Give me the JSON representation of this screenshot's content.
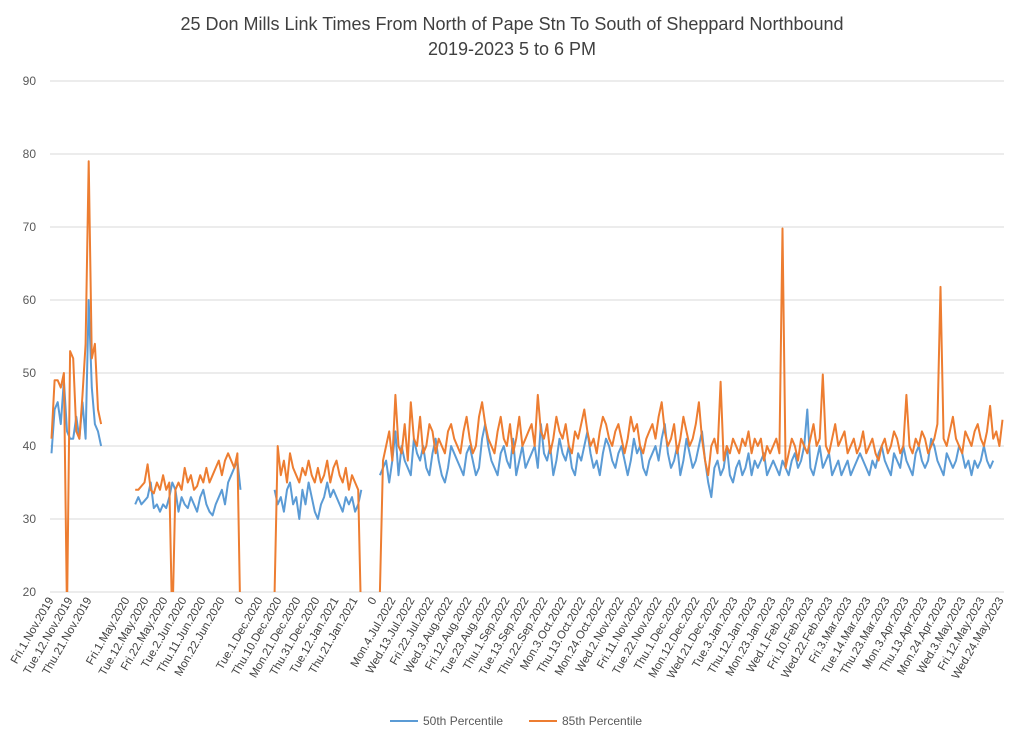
{
  "chart_data": {
    "type": "line",
    "title": "25 Don Mills Link Times From North of Pape Stn To South of Sheppard Northbound",
    "subtitle": "2019-2023 5 to 6 PM",
    "xlabel": "",
    "ylabel": "",
    "ylim": [
      20,
      90
    ],
    "yticks": [
      20,
      30,
      40,
      50,
      60,
      70,
      80,
      90
    ],
    "grid": true,
    "legend_position": "bottom",
    "colors": {
      "p50": "#5b9bd5",
      "p85": "#ed7d31",
      "grid": "#d9d9d9",
      "text": "#404040"
    },
    "x_tick_labels": [
      "Fri.1.Nov.2019",
      "Tue.12.Nov.2019",
      "Thu.21.Nov.2019",
      "",
      "Fri.1.May.2020",
      "Tue.12.May.2020",
      "Fri.22.May.2020",
      "Tue.2.Jun.2020",
      "Thu.11.Jun.2020",
      "Mon.22.Jun.2020",
      "0",
      "Tue.1.Dec.2020",
      "Thu.10.Dec.2020",
      "Mon.21.Dec.2020",
      "Thu.31.Dec.2020",
      "Tue.12.Jan.2021",
      "Thu.21.Jan.2021",
      "0",
      "Mon.4.Jul.2022",
      "Wed.13.Jul.2022",
      "Fri.22.Jul.2022",
      "Wed.3.Aug.2022",
      "Fri.12.Aug.2022",
      "Tue.23.Aug.2022",
      "Thu.1.Sep.2022",
      "Tue.13.Sep.2022",
      "Thu.22.Sep.2022",
      "Mon.3.Oct.2022",
      "Thu.13.Oct.2022",
      "Mon.24.Oct.2022",
      "Wed.2.Nov.2022",
      "Fri.11.Nov.2022",
      "Tue.22.Nov.2022",
      "Thu.1.Dec.2022",
      "Mon.12.Dec.2022",
      "Wed.21.Dec.2022",
      "Tue.3.Jan.2023",
      "Thu.12.Jan.2023",
      "Mon.23.Jan.2023",
      "Wed.1.Feb.2023",
      "Fri.10.Feb.2023",
      "Wed.22.Feb.2023",
      "Fri.3.Mar.2023",
      "Tue.14.Mar.2023",
      "Thu.23.Mar.2023",
      "Mon.3.Apr.2023",
      "Thu.13.Apr.2023",
      "Mon.24.Apr.2023",
      "Wed.3.May.2023",
      "Fri.12.May.2023",
      "Wed.24.May.2023"
    ],
    "series": [
      {
        "name": "50th Percentile",
        "segments": [
          [
            39,
            45,
            46,
            43,
            49,
            42,
            41,
            41,
            44,
            41,
            46,
            41,
            60,
            48,
            43,
            42,
            40
          ],
          [
            32,
            33,
            32,
            32.5,
            33,
            35,
            31.5,
            32,
            31,
            32,
            31.5,
            33,
            35,
            34,
            31,
            33,
            32,
            31.5,
            33,
            32,
            31,
            33,
            34,
            32,
            31,
            30.5,
            32,
            33,
            34,
            32,
            35,
            36,
            37,
            38,
            34
          ],
          [
            34,
            32,
            33,
            31,
            34,
            35,
            32,
            33,
            30,
            34,
            32,
            35,
            33,
            31,
            30,
            32,
            33,
            35,
            33,
            34,
            33,
            32,
            31,
            33,
            32,
            33,
            31,
            32,
            34
          ],
          [
            36,
            37,
            38,
            35,
            38,
            42,
            36,
            40,
            38,
            37,
            36,
            41,
            39,
            38,
            40,
            37,
            36,
            39,
            41,
            38,
            36,
            35,
            37,
            40,
            39,
            38,
            37,
            36,
            39,
            40,
            38,
            36,
            37,
            41,
            43,
            40,
            38,
            37,
            36,
            39,
            40,
            38,
            37,
            41,
            36,
            38,
            40,
            37,
            38,
            39,
            40,
            37,
            43,
            39,
            38,
            40,
            36,
            38,
            41,
            39,
            38,
            40,
            37,
            36,
            39,
            38,
            40,
            42,
            39,
            37,
            38,
            36,
            39,
            41,
            40,
            38,
            37,
            39,
            40,
            38,
            36,
            38,
            41,
            39,
            40,
            37,
            36,
            38,
            39,
            40,
            38,
            41,
            43,
            39,
            37,
            38,
            40,
            36,
            38,
            41,
            39,
            37,
            38,
            40,
            42,
            38,
            35,
            33,
            37,
            38,
            36,
            37,
            40,
            36,
            35,
            37,
            38,
            36,
            37,
            39,
            36,
            38,
            37,
            38,
            39,
            36,
            37,
            38,
            37,
            36,
            38,
            37,
            36,
            38,
            39,
            37,
            38,
            40,
            45,
            37,
            36,
            38,
            40,
            37,
            38,
            39,
            36,
            37,
            38,
            36,
            37,
            38,
            36,
            37,
            38,
            39,
            38,
            37,
            36,
            38,
            37,
            39,
            40,
            38,
            37,
            36,
            39,
            38,
            37,
            40,
            38,
            37,
            36,
            39,
            40,
            38,
            37,
            38,
            41,
            40,
            38,
            37,
            36,
            39,
            38,
            37,
            38,
            40,
            39,
            37,
            38,
            36,
            38,
            37,
            38,
            40,
            38,
            37,
            38
          ]
        ]
      },
      {
        "name": "85th Percentile",
        "segments": [
          [
            41,
            49,
            49,
            48,
            50,
            17,
            53,
            52,
            42,
            41,
            47,
            54,
            79,
            52,
            54,
            45,
            43
          ],
          [
            34,
            34,
            34.5,
            35,
            37.5,
            34,
            33.5,
            35,
            34,
            36,
            34,
            35,
            15,
            34,
            35,
            34,
            37,
            35,
            36,
            34,
            34.5,
            36,
            35,
            37,
            35,
            36,
            37,
            38,
            36,
            38,
            39,
            38,
            37,
            39,
            15
          ],
          [
            20,
            40,
            36,
            38,
            35,
            39,
            37,
            36,
            35,
            37,
            36,
            38,
            36,
            35,
            37,
            35,
            36,
            38,
            35,
            37,
            38,
            36,
            35,
            37,
            34,
            36,
            35,
            34,
            15
          ],
          [
            20,
            38,
            40,
            42,
            38,
            47,
            40,
            39,
            43,
            38,
            46,
            41,
            40,
            44,
            39,
            40,
            43,
            42,
            39,
            41,
            40,
            39,
            42,
            43,
            41,
            40,
            39,
            42,
            44,
            41,
            39,
            40,
            44,
            46,
            43,
            41,
            40,
            39,
            42,
            44,
            41,
            40,
            43,
            39,
            41,
            44,
            40,
            41,
            42,
            43,
            40,
            47,
            42,
            41,
            43,
            39,
            41,
            44,
            42,
            41,
            43,
            40,
            39,
            42,
            41,
            43,
            45,
            42,
            40,
            41,
            39,
            42,
            44,
            43,
            41,
            40,
            42,
            43,
            41,
            39,
            41,
            44,
            42,
            43,
            40,
            39,
            41,
            42,
            43,
            41,
            44,
            46,
            42,
            40,
            41,
            43,
            39,
            41,
            44,
            42,
            40,
            41,
            43,
            46,
            41,
            38,
            36,
            40,
            41,
            39,
            48.8,
            38,
            40,
            39,
            41,
            40,
            39,
            41,
            40,
            42,
            39,
            41,
            40,
            41,
            38,
            40,
            39,
            40,
            41,
            39,
            69.8,
            37,
            39,
            41,
            40,
            38,
            41,
            40,
            39,
            41,
            43,
            40,
            41,
            49.8,
            40,
            39,
            41,
            43,
            40,
            41,
            42,
            39,
            40,
            41,
            39,
            40,
            42,
            39,
            40,
            41,
            39,
            38,
            40,
            41,
            39,
            40,
            42,
            41,
            39,
            40,
            47,
            40,
            39,
            41,
            40,
            42,
            41,
            39,
            40,
            41,
            43,
            61.8,
            41,
            40,
            42,
            44,
            41,
            40,
            39,
            42,
            41,
            40,
            42,
            43,
            41,
            40,
            42,
            45.5,
            41,
            42,
            40,
            43.6
          ]
        ]
      }
    ]
  }
}
